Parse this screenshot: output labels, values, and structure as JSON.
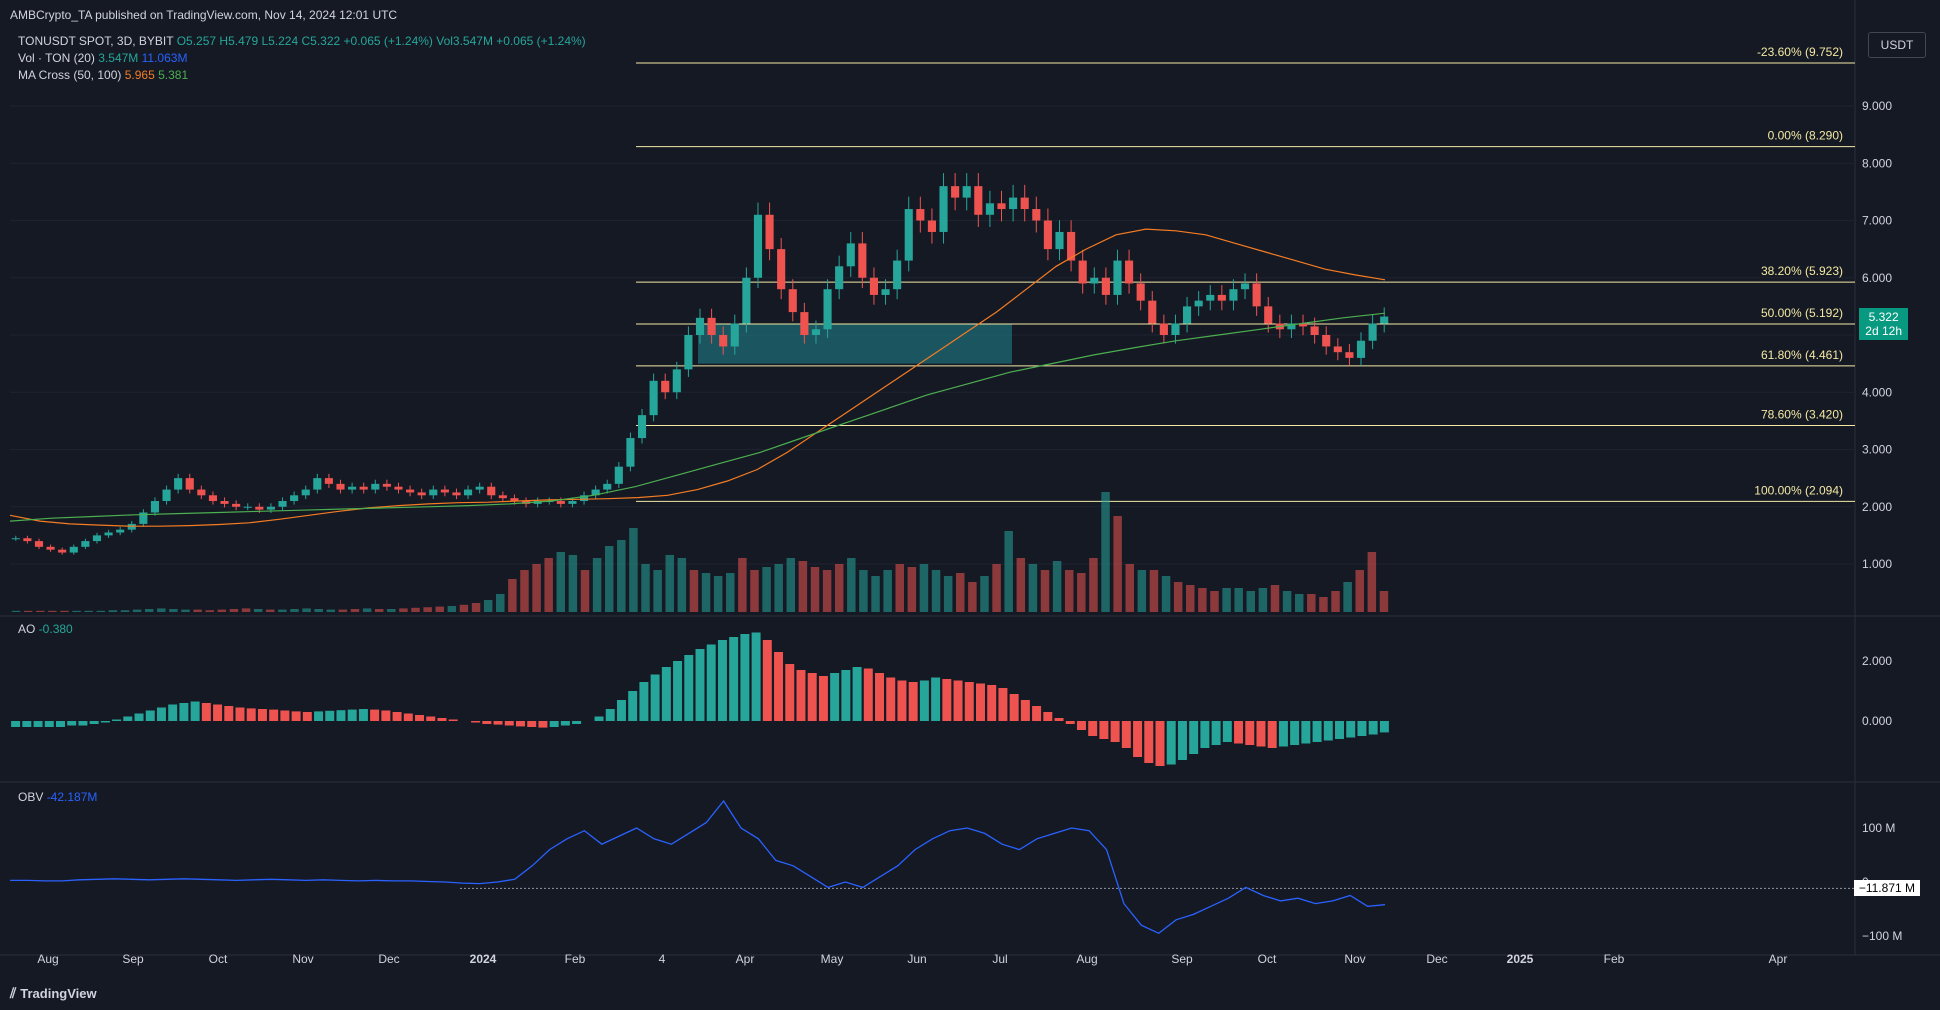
{
  "header": {
    "published": "AMBCrypto_TA published on TradingView.com, Nov 14, 2024 12:01 UTC"
  },
  "legend": {
    "symbol": "TONUSDT SPOT, 3D, BYBIT",
    "ohlc": "O5.257 H5.479 L5.224 C5.322 +0.065 (+1.24%) Vol3.547M +0.065 (+1.24%)",
    "vol_label": "Vol · TON (20)",
    "vol_values": [
      "3.547M",
      "11.063M"
    ],
    "ma_label": "MA Cross (50, 100)",
    "ma_values": [
      "5.965",
      "5.381"
    ],
    "ao_label": "AO",
    "ao_value": "-0.380",
    "obv_label": "OBV",
    "obv_value": "-42.187M"
  },
  "price_axis": {
    "currency": "USDT",
    "ticks": [
      "9.000",
      "8.000",
      "7.000",
      "6.000",
      "5.000",
      "4.000",
      "3.000",
      "2.000",
      "1.000"
    ],
    "last_price": "5.322",
    "countdown": "2d 12h"
  },
  "ao_axis": {
    "ticks": [
      "2.000",
      "0.000"
    ]
  },
  "obv_axis": {
    "ticks": [
      "100 M",
      "0",
      "−100 M"
    ],
    "marker": "−11.871 M"
  },
  "time_axis": [
    "Aug",
    "Sep",
    "Oct",
    "Nov",
    "Dec",
    "2024",
    "Feb",
    "4",
    "Apr",
    "May",
    "Jun",
    "Jul",
    "Aug",
    "Sep",
    "Oct",
    "Nov",
    "Dec",
    "2025",
    "Feb",
    "Apr"
  ],
  "footer": {
    "brand": "TradingView"
  },
  "colors": {
    "up": "#26a69a",
    "down": "#ef5350",
    "fib": "#f3e9a3",
    "ma50": "#f57c23",
    "ma100": "#4caf50",
    "volma": "#2962ff",
    "obv": "#2962ff",
    "zone": "#1e6b74"
  },
  "chart_data": {
    "type": "candlestick",
    "symbol": "TONUSDT SPOT",
    "timeframe": "3D",
    "ylim": [
      0,
      10
    ],
    "fib_levels": [
      {
        "label": "-23.60% (9.752)",
        "value": 9.752
      },
      {
        "label": "0.00% (8.290)",
        "value": 8.29
      },
      {
        "label": "38.20% (5.923)",
        "value": 5.923
      },
      {
        "label": "50.00% (5.192)",
        "value": 5.192
      },
      {
        "label": "61.80% (4.461)",
        "value": 4.461
      },
      {
        "label": "78.60% (3.420)",
        "value": 3.42
      },
      {
        "label": "100.00% (2.094)",
        "value": 2.094
      }
    ],
    "demand_zone": [
      4.5,
      5.2
    ],
    "close_series": [
      1.45,
      1.4,
      1.3,
      1.25,
      1.2,
      1.3,
      1.4,
      1.5,
      1.55,
      1.6,
      1.7,
      1.9,
      2.1,
      2.3,
      2.5,
      2.3,
      2.2,
      2.1,
      2.05,
      2.0,
      2.0,
      1.95,
      2.0,
      2.1,
      2.2,
      2.3,
      2.5,
      2.4,
      2.3,
      2.35,
      2.3,
      2.4,
      2.35,
      2.3,
      2.25,
      2.2,
      2.3,
      2.25,
      2.2,
      2.3,
      2.35,
      2.2,
      2.15,
      2.1,
      2.05,
      2.1,
      2.1,
      2.05,
      2.1,
      2.2,
      2.3,
      2.4,
      2.7,
      3.2,
      3.6,
      4.2,
      4.0,
      4.4,
      5.0,
      5.3,
      5.0,
      4.8,
      5.2,
      6.0,
      7.1,
      6.5,
      5.8,
      5.4,
      5.0,
      5.1,
      5.8,
      6.2,
      6.6,
      6.0,
      5.7,
      5.8,
      6.3,
      7.2,
      7.0,
      6.8,
      7.6,
      7.4,
      7.6,
      7.1,
      7.3,
      7.2,
      7.4,
      7.2,
      7.0,
      6.5,
      6.8,
      6.3,
      5.9,
      6.0,
      5.7,
      6.3,
      5.9,
      5.6,
      5.2,
      5.0,
      5.2,
      5.5,
      5.6,
      5.7,
      5.6,
      5.8,
      5.9,
      5.5,
      5.2,
      5.1,
      5.2,
      5.15,
      5.0,
      4.8,
      4.7,
      4.6,
      4.9,
      5.2,
      5.322
    ],
    "ma50_series": [
      1.85,
      1.75,
      1.7,
      1.68,
      1.66,
      1.66,
      1.67,
      1.69,
      1.72,
      1.78,
      1.85,
      1.92,
      1.98,
      2.02,
      2.05,
      2.07,
      2.08,
      2.1,
      2.12,
      2.13,
      2.14,
      2.16,
      2.2,
      2.3,
      2.45,
      2.65,
      2.95,
      3.3,
      3.65,
      4.0,
      4.35,
      4.7,
      5.05,
      5.4,
      5.8,
      6.2,
      6.5,
      6.75,
      6.85,
      6.82,
      6.75,
      6.6,
      6.45,
      6.3,
      6.15,
      6.05,
      5.965
    ],
    "ma100_series": [
      1.75,
      1.8,
      1.83,
      1.86,
      1.88,
      1.9,
      1.92,
      1.94,
      1.96,
      1.98,
      2.0,
      2.02,
      2.05,
      2.1,
      2.2,
      2.35,
      2.55,
      2.75,
      2.95,
      3.2,
      3.45,
      3.7,
      3.95,
      4.15,
      4.35,
      4.5,
      4.65,
      4.78,
      4.9,
      5.0,
      5.1,
      5.2,
      5.3,
      5.381
    ],
    "volume_series": [
      0.02,
      0.02,
      0.02,
      0.02,
      0.02,
      0.02,
      0.02,
      0.02,
      0.03,
      0.03,
      0.04,
      0.05,
      0.06,
      0.05,
      0.04,
      0.04,
      0.03,
      0.04,
      0.05,
      0.06,
      0.05,
      0.04,
      0.04,
      0.05,
      0.06,
      0.05,
      0.04,
      0.04,
      0.05,
      0.06,
      0.05,
      0.05,
      0.06,
      0.07,
      0.08,
      0.09,
      0.1,
      0.12,
      0.15,
      0.2,
      0.3,
      0.55,
      0.7,
      0.8,
      0.9,
      1.0,
      0.95,
      0.7,
      0.9,
      1.1,
      1.2,
      1.4,
      0.8,
      0.7,
      0.95,
      0.9,
      0.7,
      0.65,
      0.6,
      0.65,
      0.9,
      0.7,
      0.75,
      0.8,
      0.9,
      0.85,
      0.75,
      0.7,
      0.8,
      0.9,
      0.7,
      0.6,
      0.7,
      0.8,
      0.75,
      0.8,
      0.7,
      0.6,
      0.65,
      0.5,
      0.6,
      0.8,
      1.35,
      0.9,
      0.8,
      0.7,
      0.85,
      0.7,
      0.65,
      0.9,
      2.0,
      1.6,
      0.8,
      0.7,
      0.7,
      0.6,
      0.5,
      0.45,
      0.4,
      0.35,
      0.4,
      0.4,
      0.35,
      0.4,
      0.45,
      0.35,
      0.3,
      0.3,
      0.25,
      0.35,
      0.5,
      0.7,
      1.0,
      0.35
    ],
    "ao_series": [
      -0.2,
      -0.2,
      -0.2,
      -0.2,
      -0.2,
      -0.15,
      -0.15,
      -0.1,
      -0.05,
      0.05,
      0.15,
      0.25,
      0.35,
      0.45,
      0.55,
      0.6,
      0.65,
      0.6,
      0.55,
      0.5,
      0.45,
      0.42,
      0.4,
      0.38,
      0.35,
      0.32,
      0.3,
      0.32,
      0.34,
      0.36,
      0.38,
      0.4,
      0.38,
      0.35,
      0.3,
      0.25,
      0.2,
      0.15,
      0.1,
      0.05,
      0.0,
      -0.05,
      -0.1,
      -0.12,
      -0.15,
      -0.18,
      -0.2,
      -0.22,
      -0.2,
      -0.15,
      -0.1,
      0.0,
      0.15,
      0.4,
      0.7,
      1.0,
      1.3,
      1.55,
      1.8,
      2.0,
      2.2,
      2.4,
      2.55,
      2.7,
      2.8,
      2.9,
      2.95,
      2.7,
      2.3,
      1.9,
      1.7,
      1.6,
      1.5,
      1.6,
      1.7,
      1.8,
      1.75,
      1.6,
      1.45,
      1.35,
      1.3,
      1.35,
      1.45,
      1.4,
      1.35,
      1.3,
      1.25,
      1.2,
      1.1,
      0.9,
      0.7,
      0.5,
      0.3,
      0.1,
      -0.1,
      -0.3,
      -0.5,
      -0.6,
      -0.7,
      -0.9,
      -1.2,
      -1.4,
      -1.5,
      -1.45,
      -1.3,
      -1.1,
      -0.9,
      -0.8,
      -0.7,
      -0.75,
      -0.8,
      -0.85,
      -0.9,
      -0.85,
      -0.8,
      -0.75,
      -0.7,
      -0.65,
      -0.6,
      -0.55,
      -0.5,
      -0.45,
      -0.38
    ],
    "obv_series": [
      3,
      3,
      2,
      2,
      4,
      5,
      6,
      5,
      4,
      5,
      6,
      5,
      4,
      3,
      4,
      5,
      4,
      3,
      4,
      3,
      2,
      3,
      2,
      2,
      1,
      0,
      -2,
      -3,
      0,
      5,
      30,
      60,
      80,
      95,
      70,
      85,
      100,
      80,
      70,
      90,
      110,
      150,
      100,
      80,
      40,
      30,
      10,
      -10,
      0,
      -10,
      10,
      30,
      60,
      80,
      95,
      100,
      90,
      70,
      60,
      80,
      90,
      100,
      95,
      60,
      -40,
      -80,
      -95,
      -70,
      -60,
      -45,
      -30,
      -10,
      -25,
      -35,
      -30,
      -40,
      -35,
      -25,
      -45,
      -42
    ]
  }
}
